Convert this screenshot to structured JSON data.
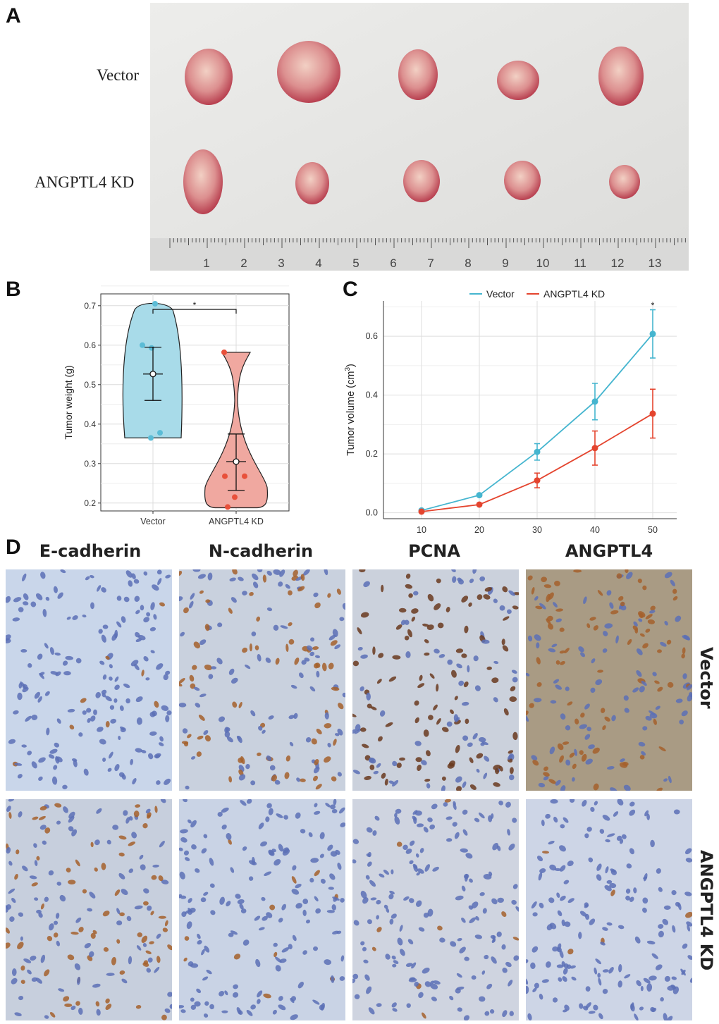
{
  "panel_a": {
    "letter": "A",
    "row_labels": [
      "Vector",
      "ANGPTL4 KD"
    ],
    "ruler_numbers": [
      "1",
      "2",
      "3",
      "4",
      "5",
      "6",
      "7",
      "8",
      "9",
      "10",
      "11",
      "12",
      "13"
    ],
    "colors": {
      "background": "#e4e4e2",
      "tumor": "#d98f8f",
      "tumor_dark": "#b8404a",
      "ruler": "#d8d8d8"
    }
  },
  "panel_b": {
    "letter": "B",
    "chart_data": {
      "type": "violin",
      "categories": [
        "Vector",
        "ANGPTL4 KD"
      ],
      "ylabel": "Tumor weight (g)",
      "ylim": [
        0.18,
        0.73
      ],
      "yticks": [
        "0.2",
        "0.3",
        "0.4",
        "0.5",
        "0.6",
        "0.7"
      ],
      "grid": true,
      "significance": "*",
      "series": [
        {
          "points": [
            0.705,
            0.6,
            0.593,
            0.378,
            0.365
          ],
          "mean": 0.527,
          "sd_low": 0.46,
          "sd_high": 0.595,
          "color": "#5bbcd6",
          "fill": "#a8dbe9"
        },
        {
          "points": [
            0.582,
            0.268,
            0.268,
            0.215,
            0.19
          ],
          "mean": 0.305,
          "sd_low": 0.232,
          "sd_high": 0.375,
          "color": "#e8503a",
          "fill": "#f0a8a0"
        }
      ]
    }
  },
  "panel_c": {
    "letter": "C",
    "chart_data": {
      "type": "line",
      "x": [
        10,
        20,
        30,
        40,
        50
      ],
      "xticks": [
        "10",
        "20",
        "30",
        "40",
        "50"
      ],
      "ylabel": "Tumor volume (cm",
      "ylabel_sup": "3",
      "ylabel_end": ")",
      "ylim": [
        -0.02,
        0.72
      ],
      "yticks": [
        "0.0",
        "0.2",
        "0.4",
        "0.6"
      ],
      "grid": true,
      "legend_position": "top",
      "significance": "*",
      "series": [
        {
          "name": "Vector",
          "color": "#45b5cf",
          "values": [
            0.008,
            0.06,
            0.207,
            0.378,
            0.608
          ],
          "err": [
            0.004,
            0.006,
            0.028,
            0.062,
            0.082
          ]
        },
        {
          "name": "ANGPTL4 KD",
          "color": "#e4442e",
          "values": [
            0.004,
            0.028,
            0.11,
            0.22,
            0.337
          ],
          "err": [
            0.003,
            0.004,
            0.025,
            0.058,
            0.083
          ]
        }
      ]
    }
  },
  "panel_d": {
    "letter": "D",
    "column_labels": [
      "E-cadherin",
      "N-cadherin",
      "PCNA",
      "ANGPTL4"
    ],
    "row_labels": [
      "Vector",
      "ANGPTL4 KD"
    ],
    "colors": {
      "nuclei": "#5068b0",
      "stain": "#a9652f",
      "background": "#c8d4e4"
    }
  }
}
